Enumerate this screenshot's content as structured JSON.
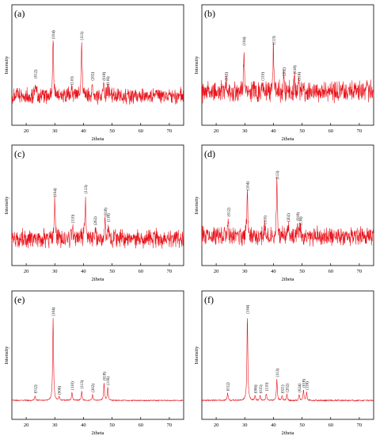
{
  "chart_data": [
    {
      "type": "line",
      "panel_label": "(a)",
      "xlabel": "2theta",
      "ylabel": "Intensity",
      "xlim": [
        15,
        75
      ],
      "ylim": [
        0,
        100
      ],
      "xticks": [
        20,
        30,
        40,
        50,
        60,
        70
      ],
      "baseline": 18,
      "noise": 9,
      "peaks": [
        {
          "hkl": "(012)",
          "x": 23.2,
          "y": 32
        },
        {
          "hkl": "(104)",
          "x": 29.4,
          "y": 68
        },
        {
          "hkl": "(110)",
          "x": 35.9,
          "y": 26
        },
        {
          "hkl": "(113)",
          "x": 39.4,
          "y": 67
        },
        {
          "hkl": "(202)",
          "x": 43.1,
          "y": 30
        },
        {
          "hkl": "(018)",
          "x": 47.1,
          "y": 30
        },
        {
          "hkl": "(116)",
          "x": 48.5,
          "y": 26
        }
      ]
    },
    {
      "type": "line",
      "panel_label": "(b)",
      "xlabel": "2theta",
      "ylabel": "Intensity",
      "xlim": [
        15,
        75
      ],
      "ylim": [
        0,
        100
      ],
      "xticks": [
        20,
        30,
        40,
        50,
        60,
        70
      ],
      "baseline": 22,
      "noise": 11,
      "peaks": [
        {
          "hkl": "(012)",
          "x": 23.5,
          "y": 30
        },
        {
          "hkl": "(104)",
          "x": 29.7,
          "y": 62
        },
        {
          "hkl": "(110)",
          "x": 36.2,
          "y": 30
        },
        {
          "hkl": "(113)",
          "x": 40.0,
          "y": 63
        },
        {
          "hkl": "(202)",
          "x": 43.6,
          "y": 34
        },
        {
          "hkl": "(018)",
          "x": 47.3,
          "y": 36
        },
        {
          "hkl": "(116)",
          "x": 48.9,
          "y": 30
        }
      ]
    },
    {
      "type": "line",
      "panel_label": "(c)",
      "xlabel": "2theta",
      "ylabel": "Intensity",
      "xlim": [
        15,
        75
      ],
      "ylim": [
        0,
        100
      ],
      "xticks": [
        20,
        30,
        40,
        50,
        60,
        70
      ],
      "baseline": 16,
      "noise": 10,
      "peaks": [
        {
          "hkl": "(104)",
          "x": 30.0,
          "y": 52
        },
        {
          "hkl": "(110)",
          "x": 36.2,
          "y": 28
        },
        {
          "hkl": "(113)",
          "x": 40.7,
          "y": 55
        },
        {
          "hkl": "(202)",
          "x": 44.1,
          "y": 26
        },
        {
          "hkl": "(018)",
          "x": 47.6,
          "y": 34
        },
        {
          "hkl": "(116)",
          "x": 48.6,
          "y": 29
        }
      ]
    },
    {
      "type": "line",
      "panel_label": "(d)",
      "xlabel": "2theta",
      "ylabel": "Intensity",
      "xlim": [
        15,
        75
      ],
      "ylim": [
        0,
        100
      ],
      "xticks": [
        20,
        30,
        40,
        50,
        60,
        70
      ],
      "baseline": 18,
      "noise": 10,
      "peaks": [
        {
          "hkl": "(012)",
          "x": 24.2,
          "y": 34
        },
        {
          "hkl": "(104)",
          "x": 30.9,
          "y": 58
        },
        {
          "hkl": "(110)",
          "x": 37.0,
          "y": 27
        },
        {
          "hkl": "(113)",
          "x": 41.2,
          "y": 68
        },
        {
          "hkl": "(202)",
          "x": 45.2,
          "y": 29
        },
        {
          "hkl": "(018)",
          "x": 48.4,
          "y": 30
        },
        {
          "hkl": "(116)",
          "x": 49.4,
          "y": 26
        }
      ]
    },
    {
      "type": "line",
      "panel_label": "(e)",
      "xlabel": "2theta",
      "ylabel": "Intensity",
      "xlim": [
        15,
        75
      ],
      "ylim": [
        0,
        100
      ],
      "xticks": [
        20,
        30,
        40,
        50,
        60,
        70
      ],
      "baseline": 8,
      "noise": 0.6,
      "peaks": [
        {
          "hkl": "(012)",
          "x": 23.1,
          "y": 12
        },
        {
          "hkl": "(104)",
          "x": 29.4,
          "y": 78
        },
        {
          "hkl": "(006)",
          "x": 31.5,
          "y": 11
        },
        {
          "hkl": "(110)",
          "x": 36.0,
          "y": 15
        },
        {
          "hkl": "(113)",
          "x": 39.4,
          "y": 16
        },
        {
          "hkl": "(202)",
          "x": 43.2,
          "y": 13
        },
        {
          "hkl": "(018)",
          "x": 47.2,
          "y": 23
        },
        {
          "hkl": "(116)",
          "x": 48.5,
          "y": 19
        }
      ]
    },
    {
      "type": "line",
      "panel_label": "(f)",
      "xlabel": "2theta",
      "ylabel": "Intensity",
      "xlim": [
        15,
        75
      ],
      "ylim": [
        0,
        100
      ],
      "xticks": [
        20,
        30,
        40,
        50,
        60,
        70
      ],
      "baseline": 8,
      "noise": 0.8,
      "peaks": [
        {
          "hkl": "(012)",
          "x": 24.0,
          "y": 14
        },
        {
          "hkl": "(104)",
          "x": 30.9,
          "y": 80
        },
        {
          "hkl": "(006)",
          "x": 33.6,
          "y": 12
        },
        {
          "hkl": "(015)",
          "x": 35.4,
          "y": 12
        },
        {
          "hkl": "(110)",
          "x": 37.5,
          "y": 14
        },
        {
          "hkl": "(113)",
          "x": 41.2,
          "y": 26
        },
        {
          "hkl": "(021)",
          "x": 43.0,
          "y": 12
        },
        {
          "hkl": "(202)",
          "x": 44.7,
          "y": 13
        },
        {
          "hkl": "(024)",
          "x": 49.0,
          "y": 13
        },
        {
          "hkl": "(018)",
          "x": 50.5,
          "y": 17
        },
        {
          "hkl": "(116)",
          "x": 51.6,
          "y": 15
        }
      ]
    }
  ]
}
